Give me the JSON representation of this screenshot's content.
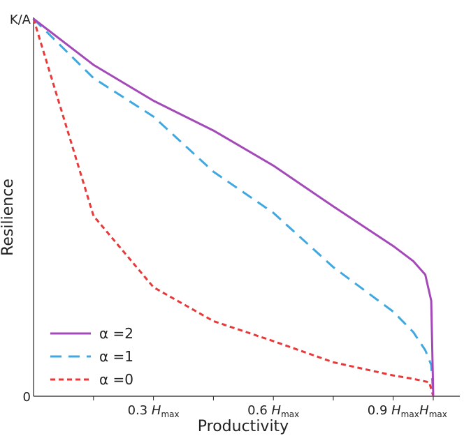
{
  "chart_data": {
    "type": "line",
    "xlabel": "Productivity",
    "ylabel": "Resilience",
    "xlim": [
      0,
      1
    ],
    "ylim": [
      0,
      1
    ],
    "x_ticks": [
      {
        "value": 0.3,
        "label": "0.3",
        "italic": "H",
        "sub": "max"
      },
      {
        "value": 0.6,
        "label": "0.6",
        "italic": "H",
        "sub": "max"
      },
      {
        "value": 0.9,
        "label": "0.9",
        "italic": "H",
        "sub": "max"
      },
      {
        "value": 1.0,
        "label": "",
        "italic": "H",
        "sub": "max"
      }
    ],
    "x_minor_ticks": [
      0.15,
      0.45,
      0.75
    ],
    "y_ticks": [
      {
        "value": 0,
        "label": "0"
      },
      {
        "value": 1,
        "label": "K/A"
      }
    ],
    "legend_position": "bottom-left",
    "series": [
      {
        "name": "α =2",
        "color": "#a349b8",
        "style": "solid",
        "points": [
          [
            0,
            1.0
          ],
          [
            0.15,
            0.878
          ],
          [
            0.3,
            0.783
          ],
          [
            0.45,
            0.704
          ],
          [
            0.6,
            0.611
          ],
          [
            0.75,
            0.503
          ],
          [
            0.9,
            0.398
          ],
          [
            0.95,
            0.358
          ],
          [
            0.98,
            0.322
          ],
          [
            0.995,
            0.253
          ],
          [
            1.0,
            0.0
          ]
        ]
      },
      {
        "name": "α =1",
        "color": "#3fa8e0",
        "style": "dashed",
        "points": [
          [
            0,
            1.0
          ],
          [
            0.15,
            0.843
          ],
          [
            0.3,
            0.741
          ],
          [
            0.45,
            0.595
          ],
          [
            0.6,
            0.486
          ],
          [
            0.75,
            0.342
          ],
          [
            0.9,
            0.224
          ],
          [
            0.95,
            0.17
          ],
          [
            0.98,
            0.122
          ],
          [
            0.995,
            0.083
          ],
          [
            1.0,
            0.0
          ]
        ]
      },
      {
        "name": "α =0",
        "color": "#e8393a",
        "style": "dotted",
        "points": [
          [
            0,
            1.0
          ],
          [
            0.15,
            0.478
          ],
          [
            0.3,
            0.289
          ],
          [
            0.45,
            0.199
          ],
          [
            0.6,
            0.146
          ],
          [
            0.75,
            0.09
          ],
          [
            0.9,
            0.055
          ],
          [
            0.95,
            0.046
          ],
          [
            0.99,
            0.037
          ],
          [
            1.0,
            0.0
          ]
        ]
      }
    ]
  }
}
